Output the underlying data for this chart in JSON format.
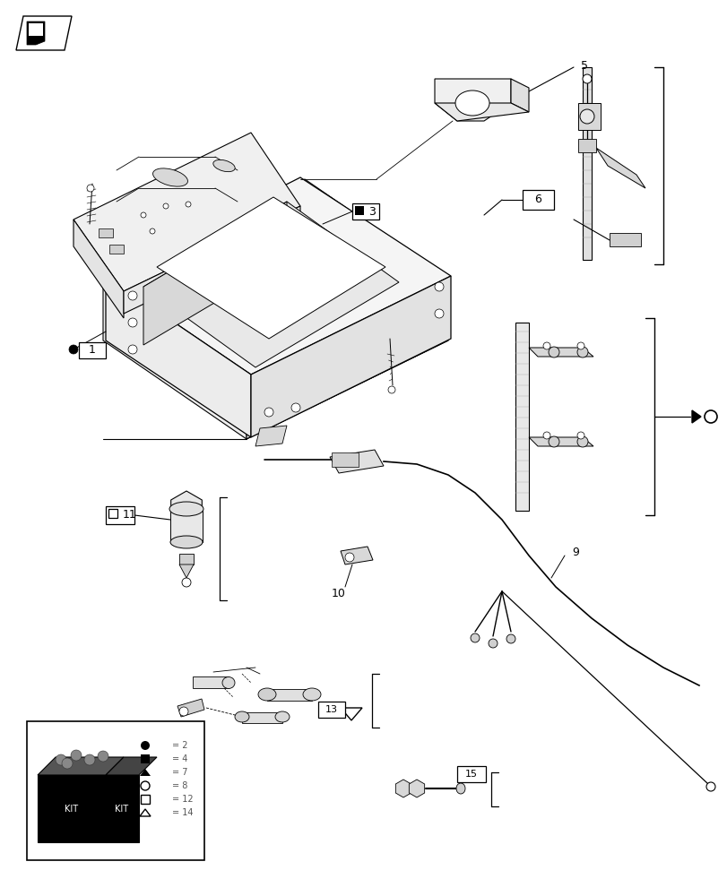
{
  "bg_color": "#ffffff",
  "fig_width": 8.12,
  "fig_height": 10.0,
  "dpi": 100,
  "lw_main": 0.8,
  "lw_thin": 0.5,
  "lw_thick": 1.2
}
